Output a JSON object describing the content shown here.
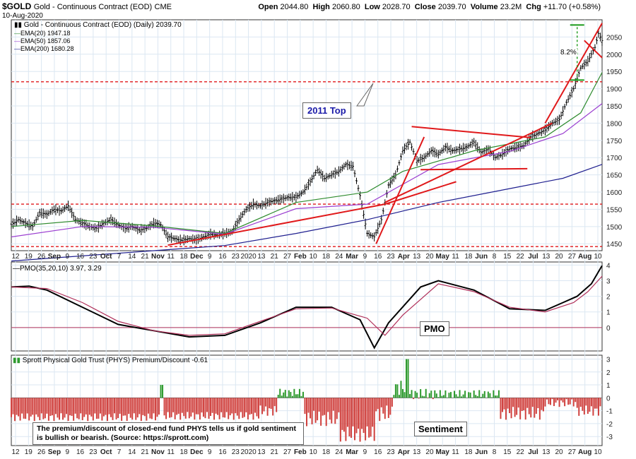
{
  "header": {
    "symbol": "$GOLD",
    "name": "Gold - Continuous Contract (EOD)",
    "exchange": "CME",
    "date": "10-Aug-2020",
    "ohlc": {
      "open_label": "Open",
      "open": "2044.80",
      "high_label": "High",
      "high": "2060.80",
      "low_label": "Low",
      "low": "2028.70",
      "close_label": "Close",
      "close": "2039.70",
      "volume_label": "Volume",
      "volume": "23.2M",
      "chg_label": "Chg",
      "chg": "+11.70 (+0.58%)"
    }
  },
  "legend": {
    "price": "Gold - Continuous Contract (EOD) (Daily) 2039.70",
    "ema20": "EMA(20) 1947.18",
    "ema50": "EMA(50) 1857.06",
    "ema200": "EMA(200) 1680.28",
    "pmo": "PMO(35,20,10) 3.97, 3.29",
    "pmo_value_a": "3.97",
    "pmo_value_b": "3.29",
    "phys": "Sprott Physical Gold Trust (PHYS) Premium/Discount -0.61"
  },
  "annotations": {
    "top_2011": "2011 Top",
    "pct": "8.2%",
    "pmo_box": "PMO",
    "sentiment_box": "Sentiment",
    "note": "The premium/discount of closed-end fund PHYS tells us if gold sentiment is bullish or bearish. (Source: https://sprott.com)"
  },
  "colors": {
    "price": "#000000",
    "ema20": "#2e8b2e",
    "ema50": "#9b3fd0",
    "ema200": "#1f1f8f",
    "pmo_line": "#000000",
    "pmo_signal": "#b0305a",
    "trend": "#e0191b",
    "hist_neg": "#d0413e",
    "hist_pos": "#2e9a2e",
    "grid": "#dbe7f2",
    "annot_blue": "#1a1aa8",
    "bracket": "#1a9a1a"
  },
  "chart_data": [
    {
      "type": "line",
      "title": "Gold - Continuous Contract (EOD) (Daily)",
      "ylim": [
        1430,
        2100
      ],
      "y_ticks": [
        "1450",
        "1500",
        "1550",
        "1600",
        "1650",
        "1700",
        "1750",
        "1800",
        "1850",
        "1900",
        "1950",
        "2000",
        "2050"
      ],
      "x_tick_labels": [
        "12",
        "19",
        "26",
        "Sep",
        "9",
        "16",
        "23",
        "Oct",
        "7",
        "14",
        "21",
        "Nov",
        "11",
        "18",
        "Dec",
        "9",
        "16",
        "23",
        "2020",
        "13",
        "21",
        "27",
        "Feb",
        "10",
        "18",
        "24",
        "Mar",
        "9",
        "16",
        "23",
        "Apr",
        "13",
        "20",
        "May",
        "11",
        "18",
        "Jun",
        "8",
        "15",
        "22",
        "Jul",
        "13",
        "20",
        "27",
        "Aug",
        "10"
      ],
      "x_tick_label_sets": [
        "12 19 26 Sep 9 16 23 Oct 7 14 21 Nov 11 18 Dec 9 16 23 2020 13 21 27 Feb 10 18 24 Mar 9 16 23 Apr 13 20 May 11 18 Jun 8 15 22 Jul 13 20 27 Aug 10"
      ],
      "series": [
        {
          "name": "Gold",
          "points": [
            [
              0,
              1505
            ],
            [
              4,
              1520
            ],
            [
              8,
              1510
            ],
            [
              12,
              1500
            ],
            [
              16,
              1540
            ],
            [
              20,
              1535
            ],
            [
              24,
              1550
            ],
            [
              28,
              1545
            ],
            [
              32,
              1560
            ],
            [
              36,
              1520
            ],
            [
              40,
              1510
            ],
            [
              44,
              1500
            ],
            [
              48,
              1495
            ],
            [
              52,
              1510
            ],
            [
              56,
              1520
            ],
            [
              60,
              1505
            ],
            [
              64,
              1495
            ],
            [
              68,
              1500
            ],
            [
              72,
              1490
            ],
            [
              76,
              1495
            ],
            [
              80,
              1510
            ],
            [
              84,
              1505
            ],
            [
              88,
              1470
            ],
            [
              92,
              1465
            ],
            [
              96,
              1460
            ],
            [
              100,
              1465
            ],
            [
              104,
              1462
            ],
            [
              108,
              1470
            ],
            [
              112,
              1478
            ],
            [
              116,
              1475
            ],
            [
              120,
              1480
            ],
            [
              124,
              1485
            ],
            [
              128,
              1520
            ],
            [
              132,
              1550
            ],
            [
              136,
              1565
            ],
            [
              140,
              1560
            ],
            [
              144,
              1570
            ],
            [
              148,
              1575
            ],
            [
              152,
              1580
            ],
            [
              156,
              1585
            ],
            [
              160,
              1585
            ],
            [
              164,
              1600
            ],
            [
              168,
              1630
            ],
            [
              172,
              1665
            ],
            [
              176,
              1640
            ],
            [
              180,
              1650
            ],
            [
              184,
              1660
            ],
            [
              188,
              1680
            ],
            [
              192,
              1675
            ],
            [
              196,
              1590
            ],
            [
              200,
              1480
            ],
            [
              204,
              1470
            ],
            [
              208,
              1520
            ],
            [
              212,
              1620
            ],
            [
              216,
              1650
            ],
            [
              220,
              1720
            ],
            [
              224,
              1745
            ],
            [
              228,
              1690
            ],
            [
              232,
              1700
            ],
            [
              236,
              1720
            ],
            [
              240,
              1710
            ],
            [
              244,
              1730
            ],
            [
              248,
              1720
            ],
            [
              252,
              1725
            ],
            [
              256,
              1730
            ],
            [
              260,
              1745
            ],
            [
              264,
              1715
            ],
            [
              268,
              1725
            ],
            [
              272,
              1700
            ],
            [
              276,
              1710
            ],
            [
              280,
              1725
            ],
            [
              284,
              1730
            ],
            [
              288,
              1735
            ],
            [
              292,
              1760
            ],
            [
              296,
              1770
            ],
            [
              300,
              1780
            ],
            [
              304,
              1800
            ],
            [
              308,
              1810
            ],
            [
              312,
              1860
            ],
            [
              316,
              1900
            ],
            [
              320,
              1960
            ],
            [
              324,
              1980
            ],
            [
              328,
              2020
            ],
            [
              330,
              2060
            ],
            [
              332,
              2039.7
            ]
          ]
        },
        {
          "name": "EMA(20)",
          "points": [
            [
              0,
              1500
            ],
            [
              40,
              1518
            ],
            [
              80,
              1502
            ],
            [
              120,
              1480
            ],
            [
              160,
              1570
            ],
            [
              200,
              1600
            ],
            [
              220,
              1660
            ],
            [
              260,
              1720
            ],
            [
              300,
              1760
            ],
            [
              320,
              1830
            ],
            [
              332,
              1947.18
            ]
          ]
        },
        {
          "name": "EMA(50)",
          "points": [
            [
              0,
              1470
            ],
            [
              40,
              1500
            ],
            [
              80,
              1498
            ],
            [
              120,
              1478
            ],
            [
              160,
              1552
            ],
            [
              200,
              1565
            ],
            [
              240,
              1680
            ],
            [
              280,
              1718
            ],
            [
              310,
              1770
            ],
            [
              332,
              1857.06
            ]
          ]
        },
        {
          "name": "EMA(200)",
          "points": [
            [
              0,
              1400
            ],
            [
              80,
              1430
            ],
            [
              120,
              1445
            ],
            [
              160,
              1480
            ],
            [
              200,
              1520
            ],
            [
              240,
              1570
            ],
            [
              280,
              1610
            ],
            [
              310,
              1640
            ],
            [
              332,
              1680.28
            ]
          ]
        }
      ]
    },
    {
      "type": "line",
      "title": "PMO(35,20,10)",
      "ylim": [
        -1.5,
        4.2
      ],
      "y_ticks": [
        "0",
        "1",
        "2",
        "3",
        "4"
      ],
      "series": [
        {
          "name": "PMO",
          "points": [
            [
              0,
              2.6
            ],
            [
              10,
              2.65
            ],
            [
              20,
              2.4
            ],
            [
              40,
              1.3
            ],
            [
              60,
              0.2
            ],
            [
              80,
              -0.2
            ],
            [
              100,
              -0.6
            ],
            [
              120,
              -0.5
            ],
            [
              140,
              0.3
            ],
            [
              160,
              1.3
            ],
            [
              180,
              1.3
            ],
            [
              196,
              0.5
            ],
            [
              204,
              -1.3
            ],
            [
              212,
              0.3
            ],
            [
              230,
              2.6
            ],
            [
              240,
              3.0
            ],
            [
              260,
              2.4
            ],
            [
              280,
              1.2
            ],
            [
              300,
              1.1
            ],
            [
              310,
              1.6
            ],
            [
              318,
              2.0
            ],
            [
              326,
              2.8
            ],
            [
              332,
              3.97
            ]
          ]
        },
        {
          "name": "Signal",
          "points": [
            [
              0,
              2.6
            ],
            [
              20,
              2.5
            ],
            [
              40,
              1.6
            ],
            [
              60,
              0.4
            ],
            [
              80,
              -0.2
            ],
            [
              100,
              -0.5
            ],
            [
              120,
              -0.4
            ],
            [
              140,
              0.4
            ],
            [
              160,
              1.2
            ],
            [
              180,
              1.25
            ],
            [
              200,
              0.6
            ],
            [
              210,
              -0.5
            ],
            [
              220,
              0.8
            ],
            [
              240,
              2.8
            ],
            [
              260,
              2.3
            ],
            [
              280,
              1.3
            ],
            [
              300,
              1.0
            ],
            [
              316,
              1.6
            ],
            [
              324,
              2.3
            ],
            [
              332,
              3.29
            ]
          ]
        }
      ]
    },
    {
      "type": "bar",
      "title": "Sprott Physical Gold Trust (PHYS) Premium/Discount",
      "ylim": [
        -3.7,
        3.3
      ],
      "y_ticks": [
        "-3",
        "-2",
        "-1",
        "0",
        "1",
        "2",
        "3"
      ],
      "segments": [
        {
          "from": 0,
          "to": 84,
          "base": -1.5,
          "amp": 0.3
        },
        {
          "from": 84,
          "to": 86,
          "base": 1.0,
          "amp": 0
        },
        {
          "from": 86,
          "to": 140,
          "base": -1.4,
          "amp": 0.3
        },
        {
          "from": 140,
          "to": 150,
          "base": -1.0,
          "amp": 0.4
        },
        {
          "from": 150,
          "to": 165,
          "base": 0.4,
          "amp": 0.3
        },
        {
          "from": 165,
          "to": 185,
          "base": -1.6,
          "amp": 0.6
        },
        {
          "from": 185,
          "to": 205,
          "base": -2.8,
          "amp": 0.6
        },
        {
          "from": 205,
          "to": 215,
          "base": -1.2,
          "amp": 0.6
        },
        {
          "from": 215,
          "to": 222,
          "base": 0.8,
          "amp": 0.6
        },
        {
          "from": 222,
          "to": 224,
          "base": 3.0,
          "amp": 0
        },
        {
          "from": 224,
          "to": 240,
          "base": 0.3,
          "amp": 0.4
        },
        {
          "from": 240,
          "to": 275,
          "base": 0.3,
          "amp": 0.3
        },
        {
          "from": 275,
          "to": 300,
          "base": -1.2,
          "amp": 0.5
        },
        {
          "from": 300,
          "to": 318,
          "base": -0.4,
          "amp": 0.3
        },
        {
          "from": 318,
          "to": 332,
          "base": -1.0,
          "amp": 0.4
        }
      ]
    }
  ]
}
